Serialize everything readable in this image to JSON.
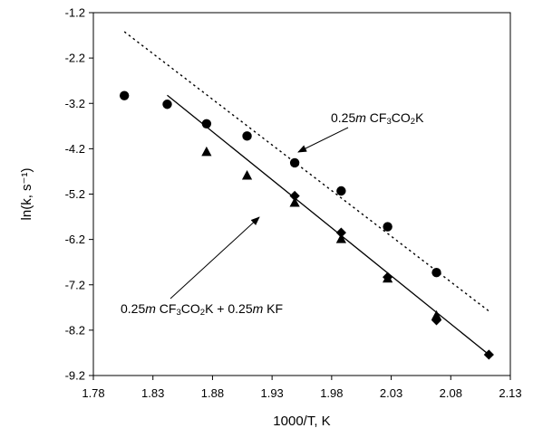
{
  "chart_data": {
    "type": "scatter",
    "title": "",
    "xlabel": "1000/T, K",
    "ylabel": "ln(k, s⁻¹)",
    "xlim": [
      1.78,
      2.13
    ],
    "ylim": [
      -9.2,
      -1.2
    ],
    "xticks": [
      "1.78",
      "1.83",
      "1.88",
      "1.93",
      "1.98",
      "2.03",
      "2.08",
      "2.13"
    ],
    "yticks": [
      "-1.2",
      "-2.2",
      "-3.2",
      "-4.2",
      "-5.2",
      "-6.2",
      "-7.2",
      "-8.2",
      "-9.2"
    ],
    "series": [
      {
        "marker": "circle",
        "points": [
          [
            1.806,
            -3.03
          ],
          [
            1.842,
            -3.22
          ],
          [
            1.875,
            -3.65
          ],
          [
            1.909,
            -3.92
          ],
          [
            1.949,
            -4.51
          ],
          [
            1.988,
            -5.13
          ],
          [
            2.027,
            -5.92
          ],
          [
            2.068,
            -6.93
          ]
        ]
      },
      {
        "marker": "triangle",
        "points": [
          [
            1.875,
            -4.27
          ],
          [
            1.909,
            -4.79
          ],
          [
            1.949,
            -5.39
          ],
          [
            1.988,
            -6.19
          ],
          [
            2.027,
            -7.06
          ],
          [
            2.068,
            -7.88
          ]
        ]
      },
      {
        "marker": "diamond",
        "points": [
          [
            1.949,
            -5.24
          ],
          [
            1.988,
            -6.05
          ],
          [
            2.027,
            -7.03
          ],
          [
            2.068,
            -7.98
          ],
          [
            2.112,
            -8.74
          ]
        ]
      }
    ],
    "fit_lines": [
      {
        "style": "dotted",
        "x": [
          1.806,
          2.112
        ],
        "y": [
          -1.62,
          -7.78
        ]
      },
      {
        "style": "solid",
        "x": [
          1.842,
          2.112
        ],
        "y": [
          -3.02,
          -8.74
        ]
      }
    ],
    "annotations": [
      {
        "id": "ann1",
        "parts": [
          {
            "t": "0.25"
          },
          {
            "t": "m",
            "italic": true
          },
          {
            "t": " CF"
          },
          {
            "t": "3",
            "sub": true
          },
          {
            "t": "CO"
          },
          {
            "t": "2",
            "sub": true
          },
          {
            "t": "K"
          }
        ]
      },
      {
        "id": "ann2",
        "parts": [
          {
            "t": "0.25"
          },
          {
            "t": "m",
            "italic": true
          },
          {
            "t": " CF"
          },
          {
            "t": "3",
            "sub": true
          },
          {
            "t": "CO"
          },
          {
            "t": "2",
            "sub": true
          },
          {
            "t": "K + 0.25"
          },
          {
            "t": "m",
            "italic": true
          },
          {
            "t": " KF"
          }
        ]
      }
    ]
  }
}
